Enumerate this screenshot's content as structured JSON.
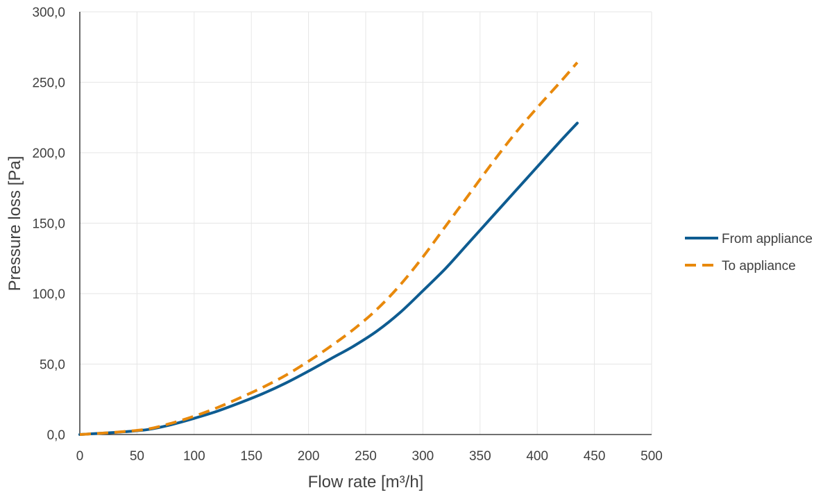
{
  "chart_data": {
    "type": "line",
    "xlabel": "Flow rate [m³/h]",
    "ylabel": "Pressure loss [Pa]",
    "xlim": [
      0,
      500
    ],
    "ylim": [
      0,
      300
    ],
    "x_ticks": [
      0,
      50,
      100,
      150,
      200,
      250,
      300,
      350,
      400,
      450,
      500
    ],
    "x_tick_labels": [
      "0",
      "50",
      "100",
      "150",
      "200",
      "250",
      "300",
      "350",
      "400",
      "450",
      "500"
    ],
    "y_ticks": [
      0,
      50,
      100,
      150,
      200,
      250,
      300
    ],
    "y_tick_labels": [
      "0,0",
      "50,0",
      "100,0",
      "150,0",
      "200,0",
      "250,0",
      "300,0"
    ],
    "grid": true,
    "legend_position": "right",
    "series": [
      {
        "name": "From appliance",
        "color": "#0E5C91",
        "dashed": false,
        "points": [
          [
            0,
            0
          ],
          [
            20,
            1
          ],
          [
            40,
            2
          ],
          [
            60,
            3.6
          ],
          [
            80,
            7
          ],
          [
            100,
            11.5
          ],
          [
            120,
            16.5
          ],
          [
            140,
            22.5
          ],
          [
            160,
            29
          ],
          [
            180,
            36.5
          ],
          [
            200,
            45
          ],
          [
            220,
            54
          ],
          [
            240,
            63
          ],
          [
            260,
            73.5
          ],
          [
            280,
            86.5
          ],
          [
            300,
            102
          ],
          [
            320,
            118
          ],
          [
            340,
            136
          ],
          [
            360,
            154
          ],
          [
            380,
            172
          ],
          [
            400,
            190
          ],
          [
            420,
            208
          ],
          [
            435,
            221
          ]
        ]
      },
      {
        "name": "To appliance",
        "color": "#E8890C",
        "dashed": true,
        "points": [
          [
            0,
            0
          ],
          [
            20,
            1
          ],
          [
            40,
            2.2
          ],
          [
            60,
            4
          ],
          [
            80,
            8
          ],
          [
            100,
            13
          ],
          [
            120,
            19
          ],
          [
            140,
            26
          ],
          [
            160,
            33.5
          ],
          [
            180,
            42
          ],
          [
            200,
            52
          ],
          [
            220,
            63
          ],
          [
            240,
            75
          ],
          [
            260,
            89
          ],
          [
            280,
            106
          ],
          [
            300,
            126
          ],
          [
            320,
            148
          ],
          [
            340,
            170
          ],
          [
            360,
            192
          ],
          [
            380,
            213
          ],
          [
            400,
            232
          ],
          [
            420,
            250
          ],
          [
            435,
            264
          ]
        ]
      }
    ]
  }
}
